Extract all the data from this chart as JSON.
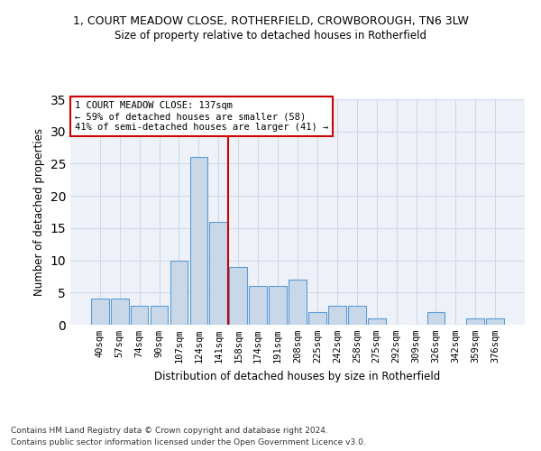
{
  "title1": "1, COURT MEADOW CLOSE, ROTHERFIELD, CROWBOROUGH, TN6 3LW",
  "title2": "Size of property relative to detached houses in Rotherfield",
  "xlabel": "Distribution of detached houses by size in Rotherfield",
  "ylabel": "Number of detached properties",
  "categories": [
    "40sqm",
    "57sqm",
    "74sqm",
    "90sqm",
    "107sqm",
    "124sqm",
    "141sqm",
    "158sqm",
    "174sqm",
    "191sqm",
    "208sqm",
    "225sqm",
    "242sqm",
    "258sqm",
    "275sqm",
    "292sqm",
    "309sqm",
    "326sqm",
    "342sqm",
    "359sqm",
    "376sqm"
  ],
  "values": [
    4,
    4,
    3,
    3,
    10,
    26,
    16,
    9,
    6,
    6,
    7,
    2,
    3,
    3,
    1,
    0,
    0,
    2,
    0,
    1,
    1
  ],
  "bar_color": "#c8d8e8",
  "bar_edgecolor": "#5b9bd5",
  "highlight_index": 6,
  "vline_color": "#cc0000",
  "annotation_title": "1 COURT MEADOW CLOSE: 137sqm",
  "annotation_line1": "← 59% of detached houses are smaller (58)",
  "annotation_line2": "41% of semi-detached houses are larger (41) →",
  "annotation_box_color": "#cc0000",
  "ylim": [
    0,
    35
  ],
  "yticks": [
    0,
    5,
    10,
    15,
    20,
    25,
    30,
    35
  ],
  "grid_color": "#d0d8e8",
  "bg_color": "#eef2f8",
  "footnote1": "Contains HM Land Registry data © Crown copyright and database right 2024.",
  "footnote2": "Contains public sector information licensed under the Open Government Licence v3.0."
}
